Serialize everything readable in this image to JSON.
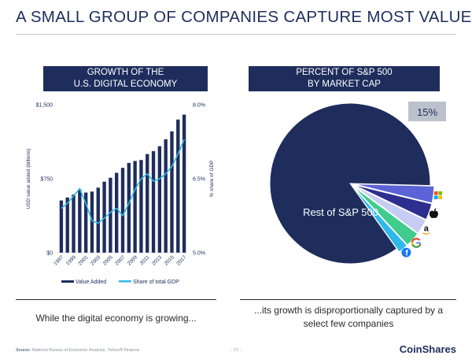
{
  "page": {
    "title": "A SMALL GROUP OF COMPANIES CAPTURE MOST VALUE",
    "left_panel": {
      "title_line1": "GROWTH OF THE",
      "title_line2": "U.S. DIGITAL ECONOMY"
    },
    "right_panel": {
      "title_line1": "PERCENT OF S&P 500",
      "title_line2": "BY MARKET CAP"
    },
    "left_caption": "While the digital economy is growing...",
    "right_caption": "...its growth is disproportionally captured by a select few companies",
    "footer": {
      "source_label": "Source:",
      "source_text": "National Bureau of Economic Analysis, Yahoo® Finance",
      "page_number": "- 83 -",
      "logo_part1": "Coin",
      "logo_part2": "Shares"
    }
  },
  "chart_data": [
    {
      "type": "bar",
      "ylabel": "USD value added (billions)",
      "y2label": "% share of GDP",
      "ylim": [
        0,
        1500
      ],
      "y2lim": [
        5.0,
        8.0
      ],
      "y_ticks": [
        "$0",
        "$750",
        "$1,500"
      ],
      "y2_ticks": [
        "5.0%",
        "6.5%",
        "8.0%"
      ],
      "x_ticks": [
        "1997",
        "1999",
        "2001",
        "2003",
        "2005",
        "2007",
        "2009",
        "2011",
        "2013",
        "2015",
        "2017"
      ],
      "categories": [
        "1997",
        "1998",
        "1999",
        "2000",
        "2001",
        "2002",
        "2003",
        "2004",
        "2005",
        "2006",
        "2007",
        "2008",
        "2009",
        "2010",
        "2011",
        "2012",
        "2013",
        "2014",
        "2015",
        "2016",
        "2017"
      ],
      "series": [
        {
          "name": "Value Added",
          "type": "bar",
          "color": "#1e2d5c",
          "values": [
            530,
            560,
            590,
            640,
            610,
            620,
            660,
            720,
            760,
            810,
            860,
            910,
            930,
            940,
            1000,
            1030,
            1080,
            1150,
            1230,
            1350,
            1400
          ]
        },
        {
          "name": "Share of total GDP",
          "type": "line",
          "color": "#2fb8ea",
          "axis": "right",
          "values": [
            5.9,
            6.0,
            6.15,
            6.3,
            6.0,
            5.65,
            5.6,
            5.7,
            5.82,
            5.9,
            5.75,
            6.0,
            6.28,
            6.5,
            6.6,
            6.45,
            6.5,
            6.6,
            6.75,
            7.0,
            7.3
          ]
        }
      ],
      "legend_position": "bottom"
    },
    {
      "type": "pie",
      "labels": [
        "Microsoft",
        "Apple",
        "Amazon",
        "Google",
        "Facebook",
        "Rest of S&P 500"
      ],
      "values": [
        3.4,
        3.3,
        3.0,
        3.0,
        2.0,
        85.3
      ],
      "colors": [
        "#5b63d6",
        "#2c2f8e",
        "#c5cdf2",
        "#3fcc8e",
        "#2fb8ea",
        "#1e2d5c"
      ],
      "icons": [
        "microsoft-logo",
        "apple-logo",
        "amazon-logo",
        "google-logo",
        "facebook-logo",
        ""
      ],
      "callout": "15%",
      "slice_label": "Rest of S&P 500"
    }
  ]
}
